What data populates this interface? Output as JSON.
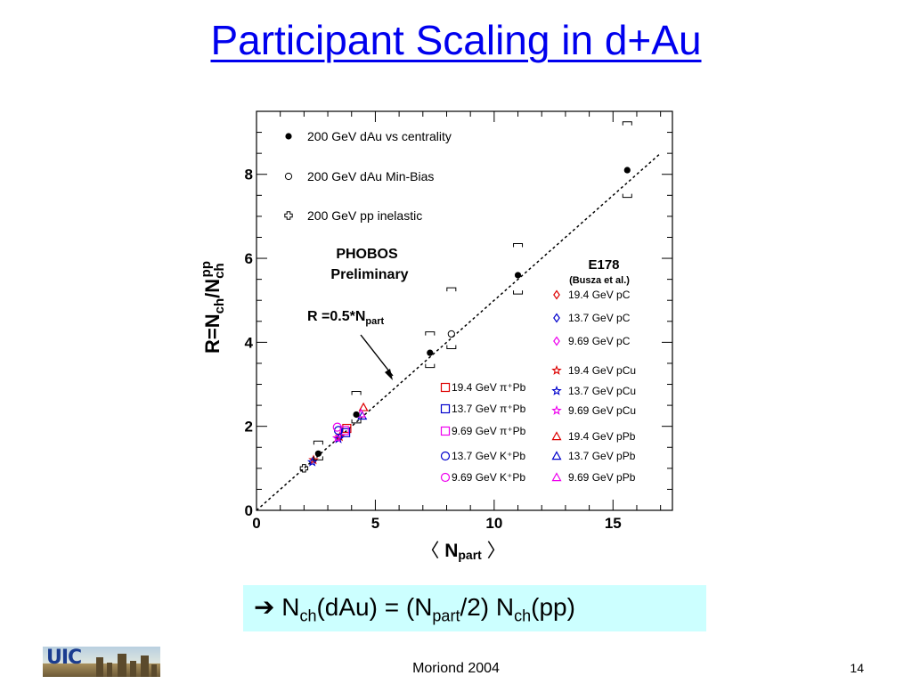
{
  "slide": {
    "title": "Participant Scaling in d+Au",
    "formula": {
      "arrow": "➔",
      "p1": " N",
      "s1": "ch",
      "p2": "(dAu) = (N",
      "s2": "part",
      "p3": "/2) N",
      "s3": "ch",
      "p4": "(pp)",
      "background": "#ccffff"
    },
    "footer_center": "Moriond 2004",
    "page_number": "14",
    "logo_text": "UIC"
  },
  "chart_data": {
    "type": "scatter",
    "xlim": [
      0,
      17.5
    ],
    "ylim": [
      0,
      9.5
    ],
    "x_ticks": [
      0,
      5,
      10,
      15
    ],
    "y_ticks": [
      0,
      2,
      4,
      6,
      8
    ],
    "xlabel": {
      "left_bracket": "〈",
      "main": "N",
      "sub": "part",
      "right_bracket": "〉"
    },
    "ylabel": {
      "main": "R=N",
      "sub1": "ch",
      "mid": "/N",
      "sub2": "ch",
      "sup2": "pp"
    },
    "grid": false,
    "fit_line": {
      "slope": 0.5,
      "x_range": [
        0,
        17
      ]
    },
    "annotations": {
      "phobos_line1": "PHOBOS",
      "phobos_line2": "Preliminary",
      "fit_label": "R =0.5*N",
      "fit_label_sub": "part",
      "e178": "E178",
      "e178_sub": "(Busza et al.)"
    },
    "series_phobos": [
      {
        "name": "200 GeV dAu vs centrality",
        "marker": "filled-circle",
        "color": "#000000",
        "points": [
          {
            "x": 2.6,
            "y": 1.35,
            "err_lo": 0.15,
            "err_hi": 0.3
          },
          {
            "x": 4.2,
            "y": 2.28,
            "err_lo": 0.2,
            "err_hi": 0.55
          },
          {
            "x": 7.3,
            "y": 3.75,
            "err_lo": 0.35,
            "err_hi": 0.5
          },
          {
            "x": 11.0,
            "y": 5.6,
            "err_lo": 0.45,
            "err_hi": 0.75
          },
          {
            "x": 15.6,
            "y": 8.1,
            "err_lo": 0.65,
            "err_hi": 1.15
          }
        ]
      },
      {
        "name": "200 GeV dAu  Min-Bias",
        "marker": "open-circle",
        "color": "#000000",
        "points": [
          {
            "x": 8.2,
            "y": 4.2,
            "err_lo": 0.35,
            "err_hi": 1.1
          }
        ]
      },
      {
        "name": "200 GeV pp inelastic",
        "marker": "open-cross",
        "color": "#000000",
        "points": [
          {
            "x": 2.0,
            "y": 1.0
          }
        ]
      }
    ],
    "series_e178": [
      {
        "name": "19.4 GeV pC",
        "marker": "diamond",
        "color": "#dd0000",
        "points": []
      },
      {
        "name": "13.7 GeV pC",
        "marker": "diamond",
        "color": "#0000cc",
        "points": []
      },
      {
        "name": "9.69 GeV pC",
        "marker": "diamond",
        "color": "#ee00ee",
        "points": []
      },
      {
        "name": "19.4 GeV pCu",
        "marker": "star",
        "color": "#dd0000",
        "points": [
          {
            "x": 3.5,
            "y": 1.75
          }
        ]
      },
      {
        "name": "13.7 GeV pCu",
        "marker": "star",
        "color": "#0000cc",
        "points": [
          {
            "x": 3.45,
            "y": 1.7
          }
        ]
      },
      {
        "name": "9.69 GeV pCu",
        "marker": "star",
        "color": "#ee00ee",
        "points": [
          {
            "x": 3.4,
            "y": 1.72
          }
        ]
      },
      {
        "name": "19.4 GeV pPb",
        "marker": "triangle",
        "color": "#dd0000",
        "points": [
          {
            "x": 4.5,
            "y": 2.45
          }
        ]
      },
      {
        "name": "13.7 GeV pPb",
        "marker": "triangle",
        "color": "#0000cc",
        "points": [
          {
            "x": 4.45,
            "y": 2.25
          }
        ]
      },
      {
        "name": "9.69 GeV pPb",
        "marker": "triangle",
        "color": "#ee00ee",
        "points": [
          {
            "x": 4.4,
            "y": 2.3
          }
        ]
      },
      {
        "name": "19.4 GeV π⁺Pb",
        "marker": "square",
        "color": "#dd0000",
        "points": [
          {
            "x": 3.8,
            "y": 1.95
          }
        ]
      },
      {
        "name": "13.7 GeV π⁺Pb",
        "marker": "square",
        "color": "#0000cc",
        "points": [
          {
            "x": 3.75,
            "y": 1.85
          }
        ]
      },
      {
        "name": "9.69 GeV π⁺Pb",
        "marker": "square",
        "color": "#ee00ee",
        "points": [
          {
            "x": 3.7,
            "y": 1.9
          }
        ]
      },
      {
        "name": "13.7 GeV K⁺Pb",
        "marker": "circle",
        "color": "#0000cc",
        "points": [
          {
            "x": 3.45,
            "y": 1.9
          }
        ]
      },
      {
        "name": "9.69 GeV K⁺Pb",
        "marker": "circle",
        "color": "#ee00ee",
        "points": [
          {
            "x": 3.4,
            "y": 1.98
          }
        ]
      },
      {
        "name": "19.4 GeV pCu",
        "marker": "star",
        "color": "#dd0000",
        "points": [
          {
            "x": 2.4,
            "y": 1.2
          }
        ]
      },
      {
        "name": "13.7 GeV pCu",
        "marker": "star",
        "color": "#0000cc",
        "points": [
          {
            "x": 2.35,
            "y": 1.15
          }
        ]
      }
    ],
    "legend": {
      "phobos_placement": "top-left",
      "e178_placement": "bottom-right"
    }
  }
}
